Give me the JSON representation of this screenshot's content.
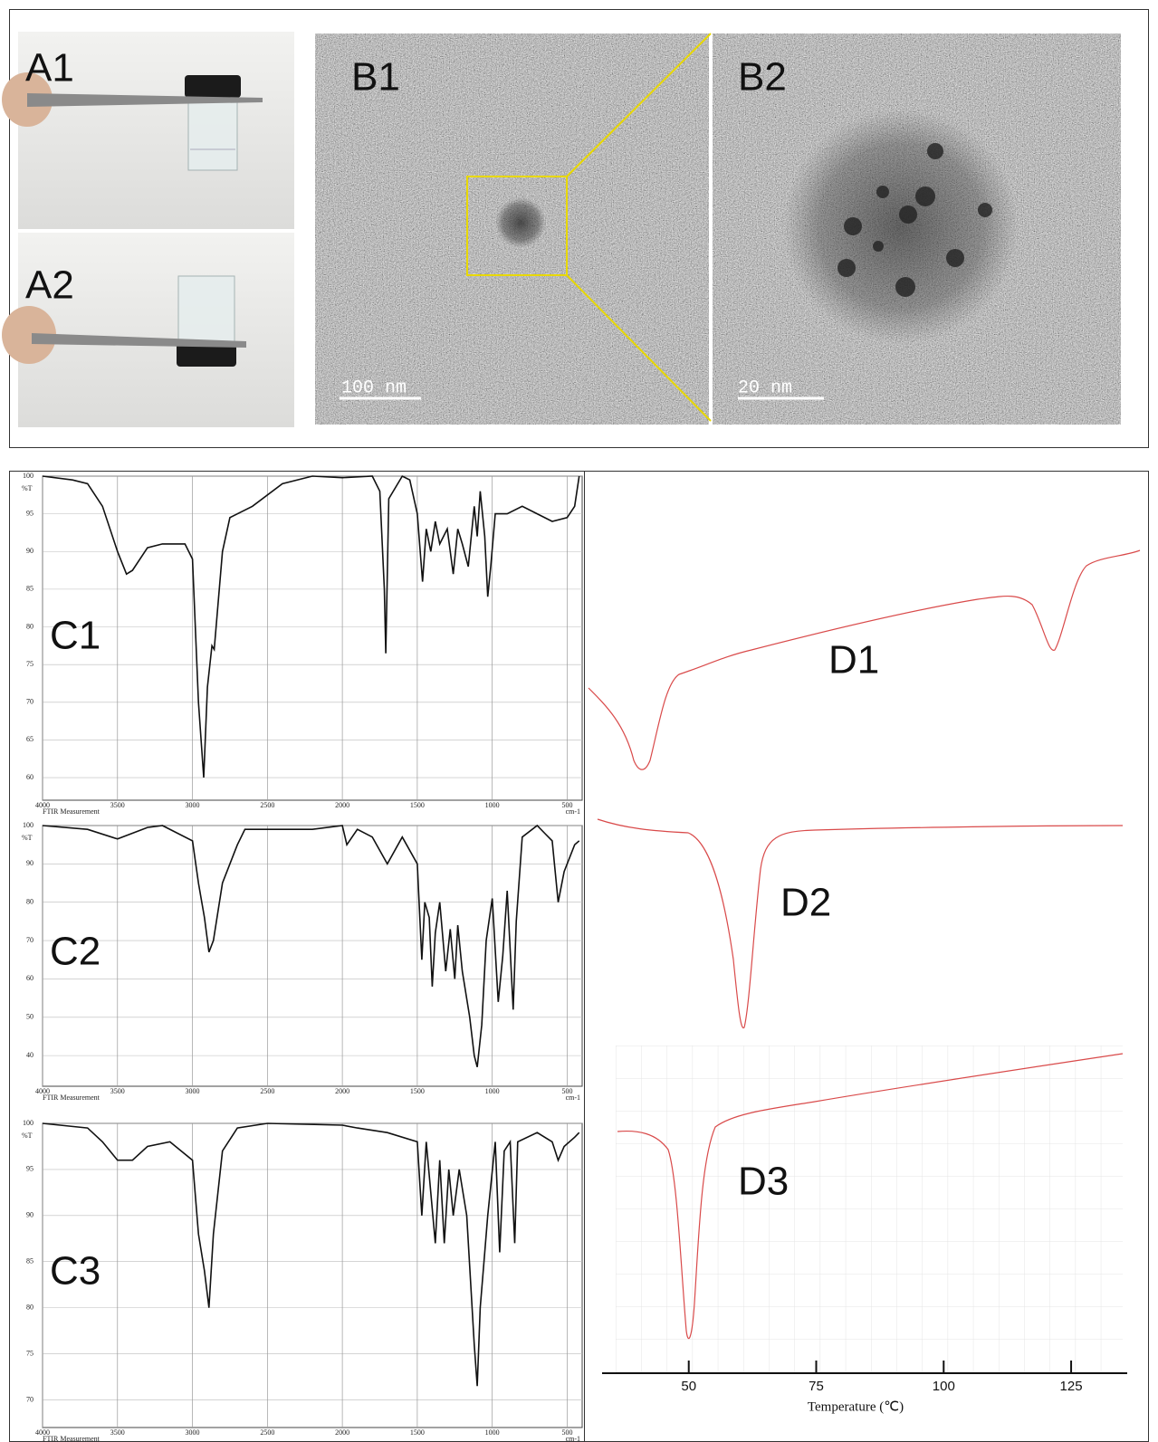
{
  "panels": {
    "a1": "A1",
    "a2": "A2",
    "b1": "B1",
    "b2": "B2",
    "d1": "D1",
    "d2": "D2",
    "d3": "D3"
  },
  "scale_bars": {
    "b1": "100 nm",
    "b2": "20 nm"
  },
  "chart_data": [
    {
      "type": "line",
      "label": "C1",
      "color": "#111111",
      "grid": true,
      "y_marker": "%T",
      "x_caption": "FTIR Measurement",
      "x_unit": "cm-1",
      "xlim": [
        4000,
        400
      ],
      "ylim": [
        57,
        100
      ],
      "xticks": [
        4000,
        3500,
        3000,
        2500,
        2000,
        1500,
        1000,
        500
      ],
      "yticks": [
        60,
        65,
        70,
        75,
        80,
        85,
        90,
        95,
        100
      ],
      "x": [
        4000,
        3800,
        3700,
        3600,
        3500,
        3440,
        3400,
        3300,
        3200,
        3050,
        3000,
        2960,
        2925,
        2900,
        2870,
        2855,
        2800,
        2750,
        2600,
        2400,
        2200,
        2000,
        1800,
        1750,
        1720,
        1710,
        1690,
        1600,
        1550,
        1500,
        1465,
        1440,
        1410,
        1380,
        1350,
        1300,
        1260,
        1230,
        1200,
        1160,
        1120,
        1100,
        1080,
        1050,
        1030,
        1010,
        980,
        900,
        800,
        700,
        600,
        500,
        450,
        420
      ],
      "values": [
        100,
        99.5,
        99,
        96,
        90,
        87,
        87.5,
        90.5,
        91,
        91,
        89,
        70,
        60,
        72,
        77.5,
        77,
        90,
        94.5,
        96,
        99,
        100,
        99.8,
        100,
        98,
        85,
        76.5,
        97,
        100,
        99.5,
        95,
        86,
        93,
        90,
        94,
        91,
        93,
        87,
        93,
        91,
        88,
        96,
        92,
        98,
        92,
        84,
        88,
        95,
        95,
        96,
        95,
        94,
        94.5,
        96,
        100
      ]
    },
    {
      "type": "line",
      "label": "C2",
      "color": "#111111",
      "grid": true,
      "y_marker": "%T",
      "x_caption": "FTIR Measurement",
      "x_unit": "cm-1",
      "xlim": [
        4000,
        400
      ],
      "ylim": [
        32,
        100
      ],
      "xticks": [
        4000,
        3500,
        3000,
        2500,
        2000,
        1500,
        1000,
        500
      ],
      "yticks": [
        40,
        50,
        60,
        70,
        80,
        90,
        100
      ],
      "x": [
        4000,
        3700,
        3500,
        3300,
        3200,
        3000,
        2960,
        2920,
        2890,
        2860,
        2800,
        2750,
        2720,
        2700,
        2650,
        2500,
        2200,
        2000,
        1970,
        1900,
        1800,
        1700,
        1600,
        1500,
        1470,
        1450,
        1420,
        1400,
        1380,
        1350,
        1310,
        1280,
        1250,
        1230,
        1200,
        1150,
        1120,
        1100,
        1070,
        1040,
        1000,
        960,
        930,
        900,
        860,
        840,
        800,
        700,
        650,
        600,
        560,
        520,
        450,
        420
      ],
      "values": [
        100,
        99,
        96.5,
        99.5,
        100,
        96,
        85,
        76,
        67,
        70,
        85,
        90,
        93,
        95,
        99,
        99,
        99,
        100,
        95,
        99,
        97,
        90,
        97,
        90,
        65,
        80,
        76,
        58,
        72,
        80,
        62,
        73,
        60,
        74,
        62,
        50,
        40,
        37,
        48,
        70,
        81,
        54,
        66,
        83,
        52,
        75,
        97,
        100,
        98,
        96,
        80,
        88,
        95,
        96
      ]
    },
    {
      "type": "line",
      "label": "C3",
      "color": "#111111",
      "grid": true,
      "y_marker": "%T",
      "x_caption": "FTIR Measurement",
      "x_unit": "cm-1",
      "xlim": [
        4000,
        400
      ],
      "ylim": [
        67,
        100
      ],
      "xticks": [
        4000,
        3500,
        3000,
        2500,
        2000,
        1500,
        1000,
        500
      ],
      "yticks": [
        70,
        75,
        80,
        85,
        90,
        95,
        100
      ],
      "x": [
        4000,
        3700,
        3600,
        3500,
        3400,
        3300,
        3150,
        3000,
        2960,
        2920,
        2890,
        2860,
        2800,
        2700,
        2500,
        2000,
        1900,
        1700,
        1500,
        1470,
        1440,
        1380,
        1350,
        1320,
        1290,
        1260,
        1220,
        1170,
        1120,
        1100,
        1080,
        1050,
        1030,
        980,
        950,
        920,
        880,
        850,
        830,
        700,
        600,
        560,
        520,
        450,
        420
      ],
      "values": [
        100,
        99.5,
        98,
        96,
        96,
        97.5,
        98,
        96,
        88,
        84,
        80,
        88,
        97,
        99.5,
        100,
        99.8,
        99.5,
        99,
        98,
        90,
        98,
        87,
        96,
        87,
        95,
        90,
        95,
        90,
        76,
        71.5,
        80,
        86,
        90,
        98,
        86,
        97,
        98,
        87,
        98,
        99,
        98,
        96,
        97.5,
        98.5,
        99
      ]
    },
    {
      "type": "axis",
      "xlim": [
        33,
        136
      ],
      "xticks": [
        50,
        75,
        100,
        125
      ],
      "xlabel": "Temperature (℃)"
    }
  ]
}
